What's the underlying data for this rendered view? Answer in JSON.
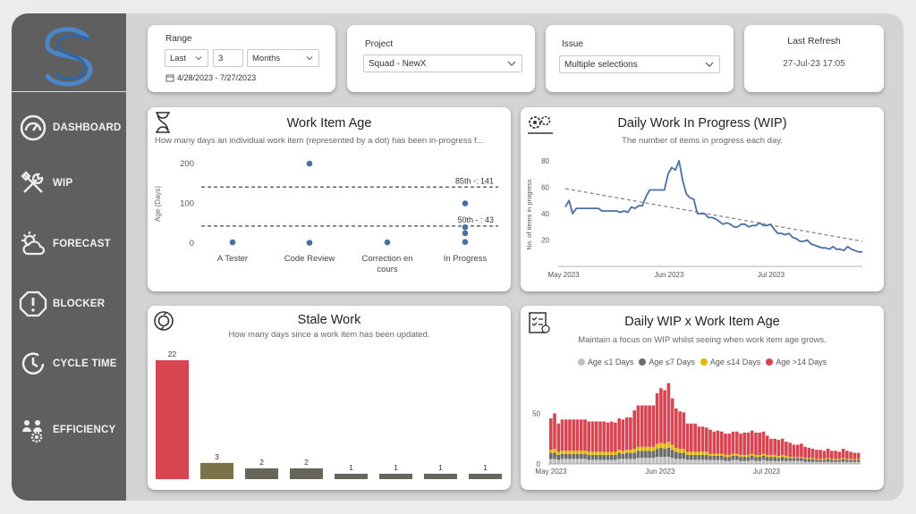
{
  "sidebar": {
    "items": [
      {
        "label": "DASHBOARD",
        "icon": "gauge-icon"
      },
      {
        "label": "WIP",
        "icon": "tools-icon"
      },
      {
        "label": "FORECAST",
        "icon": "weather-icon"
      },
      {
        "label": "BLOCKER",
        "icon": "alert-icon"
      },
      {
        "label": "CYCLE TIME",
        "icon": "clock-icon"
      },
      {
        "label": "EFFICIENCY",
        "icon": "team-icon"
      }
    ]
  },
  "filters": {
    "range": {
      "label": "Range",
      "mode": "Last",
      "count": "3",
      "unit": "Months",
      "dates": "4/28/2023 - 7/27/2023"
    },
    "project": {
      "label": "Project",
      "value": "Squad - NewX"
    },
    "issue": {
      "label": "Issue",
      "value": "Multiple selections"
    },
    "refresh": {
      "label": "Last Refresh",
      "value": "27-Jul-23 17:05"
    }
  },
  "colors": {
    "dot": "#4a6fa5",
    "line": "#4a6fa5",
    "bar_red": "#d64550",
    "bar_olive": "#7a7349",
    "bar_gray": "#66675a",
    "yellow": "#e0b800",
    "dark": "#6b6b6b",
    "light": "#c0c0c0"
  },
  "work_item_age": {
    "title": "Work Item Age",
    "subtitle": "How many days an individual work item (represented by a dot) has been in-progress f...",
    "ylabel": "Age (Days)",
    "yticks": [
      "200",
      "100",
      "0"
    ],
    "p85": "85th -: 141",
    "p50": "50th - : 43",
    "chart_data": {
      "type": "scatter",
      "categories": [
        "A Tester",
        "Code Review",
        "Correction en cours",
        "In Progress"
      ],
      "ylim": [
        0,
        200
      ],
      "percentiles": {
        "p85": 141,
        "p50": 43
      },
      "points": [
        {
          "category": "A Tester",
          "y": 2
        },
        {
          "category": "Code Review",
          "y": 200
        },
        {
          "category": "Code Review",
          "y": 1
        },
        {
          "category": "Correction en cours",
          "y": 2
        },
        {
          "category": "In Progress",
          "y": 100
        },
        {
          "category": "In Progress",
          "y": 40
        },
        {
          "category": "In Progress",
          "y": 25
        },
        {
          "category": "In Progress",
          "y": 3
        }
      ]
    }
  },
  "daily_wip": {
    "title": "Daily Work In Progress (WIP)",
    "subtitle": "The number of items in progress each day.",
    "ylabel": "No. of items in progress",
    "chart_data": {
      "type": "line",
      "ylim": [
        0,
        80
      ],
      "yticks": [
        "80",
        "60",
        "40",
        "20"
      ],
      "xticks": [
        "May 2023",
        "Jun 2023",
        "Jul 2023"
      ],
      "values": [
        45,
        50,
        40,
        44,
        44,
        44,
        44,
        44,
        44,
        44,
        42,
        42,
        42,
        42,
        42,
        41,
        42,
        41,
        45,
        44,
        46,
        46,
        53,
        58,
        58,
        58,
        58,
        58,
        70,
        75,
        73,
        80,
        65,
        55,
        52,
        51,
        40,
        40,
        40,
        37,
        37,
        36,
        34,
        32,
        33,
        32,
        30,
        30,
        32,
        32,
        30,
        31,
        31,
        33,
        31,
        31,
        32,
        28,
        25,
        25,
        24,
        25,
        22,
        21,
        19,
        19,
        20,
        17,
        16,
        15,
        14,
        14,
        13,
        15,
        13,
        13,
        12,
        15,
        13,
        12,
        11,
        11
      ],
      "trend": [
        59,
        19
      ]
    }
  },
  "stale_work": {
    "title": "Stale Work",
    "subtitle": "How many days since a work item has been updated.",
    "chart_data": {
      "type": "bar",
      "values": [
        22,
        3,
        2,
        2,
        1,
        1,
        1,
        1
      ],
      "labels": [
        "22",
        "3",
        "2",
        "2",
        "1",
        "1",
        "1",
        "1"
      ]
    }
  },
  "wip_age": {
    "title": "Daily WIP x Work Item Age",
    "subtitle": "Maintain a focus on WIP whilst seeing when work item age grows.",
    "legend": [
      "Age ≤1 Days",
      "Age ≤7 Days",
      "Age ≤14 Days",
      "Age >14 Days"
    ],
    "chart_data": {
      "type": "bar",
      "stacked": true,
      "yticks": [
        "50",
        "0"
      ],
      "xticks": [
        "May 2023",
        "Jun 2023",
        "Jul 2023"
      ],
      "totals": [
        45,
        50,
        40,
        44,
        44,
        44,
        44,
        44,
        44,
        44,
        42,
        42,
        42,
        42,
        42,
        41,
        42,
        41,
        45,
        44,
        46,
        46,
        53,
        58,
        58,
        58,
        58,
        58,
        70,
        75,
        73,
        80,
        65,
        55,
        52,
        51,
        40,
        40,
        40,
        37,
        37,
        36,
        34,
        32,
        33,
        32,
        30,
        30,
        32,
        32,
        30,
        31,
        31,
        33,
        31,
        31,
        32,
        28,
        25,
        25,
        24,
        25,
        22,
        21,
        19,
        19,
        20,
        17,
        16,
        15,
        14,
        14,
        13,
        15,
        13,
        13,
        12,
        15,
        13,
        12,
        11,
        11
      ],
      "series": [
        {
          "name": "Age ≤1 Days"
        },
        {
          "name": "Age ≤7 Days"
        },
        {
          "name": "Age ≤14 Days"
        },
        {
          "name": "Age >14 Days"
        }
      ]
    }
  }
}
